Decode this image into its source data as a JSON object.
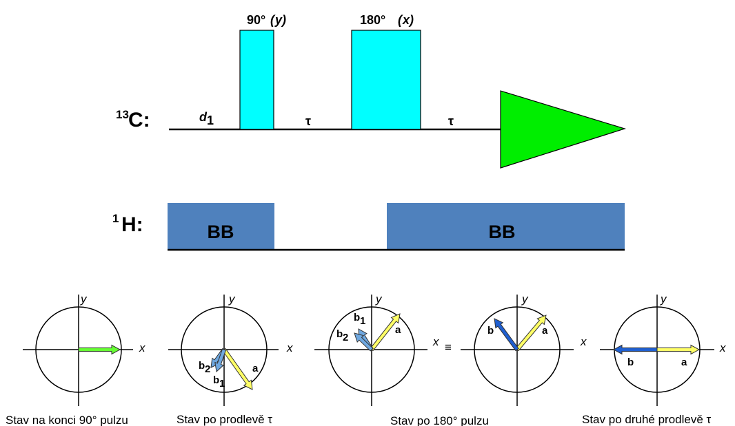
{
  "sequence": {
    "c13_label_sup": "13",
    "c13_label_main": "C:",
    "h1_label_sup": "1",
    "h1_label_main": "H:",
    "pulse90_label": "90°",
    "pulse90_phase": "y",
    "pulse180_label": "180°",
    "pulse180_phase": "x",
    "delay_d_main": "d",
    "delay_d_sub": "1",
    "tau1": "τ",
    "tau2": "τ",
    "bb1": "BB",
    "bb2": "BB"
  },
  "colors": {
    "pulse": "#00ffff",
    "acquisition": "#00ee00",
    "decoupling": "#4f81bd",
    "vec_green": "#66ff33",
    "vec_yellow": "#ffff66",
    "vec_lightblue": "#6fa8e0",
    "vec_blue": "#1f5fd0"
  },
  "vector_diagrams": [
    {
      "x_label": "x",
      "y_label": "y",
      "caption": "Stav na konci 90° pulzu"
    },
    {
      "x_label": "x",
      "y_label": "y",
      "caption": "Stav po prodlevě τ",
      "a": "a",
      "b1_main": "b",
      "b1_sub": "1",
      "b2_main": "b",
      "b2_sub": "2"
    },
    {
      "x_label": "x",
      "y_label": "y",
      "caption": "Stav po 180° pulzu",
      "a": "a",
      "b1_main": "b",
      "b1_sub": "1",
      "b2_main": "b",
      "b2_sub": "2"
    },
    {
      "x_label": "x",
      "y_label": "y",
      "a": "a",
      "b": "b"
    },
    {
      "x_label": "x",
      "y_label": "y",
      "caption": "Stav po druhé prodlevě τ",
      "a": "a",
      "b": "b"
    }
  ],
  "equiv_symbol": "≡"
}
